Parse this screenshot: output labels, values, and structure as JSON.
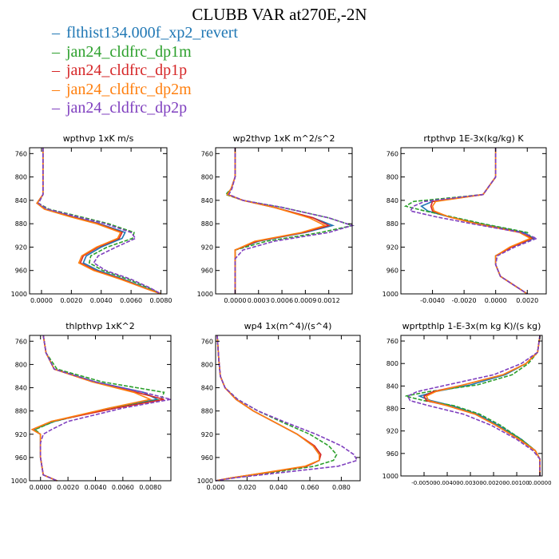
{
  "title": "CLUBB VAR at270E,-2N",
  "legend": [
    {
      "label": "flthist134.000f_xp2_revert",
      "color": "#1f77b4"
    },
    {
      "label": "jan24_cldfrc_dp1m",
      "color": "#2ca02c"
    },
    {
      "label": "jan24_cldfrc_dp1p",
      "color": "#d62728"
    },
    {
      "label": "jan24_cldfrc_dp2m",
      "color": "#ff7f0e"
    },
    {
      "label": "jan24_cldfrc_dp2p",
      "color": "#7f3fbf"
    }
  ],
  "chart_data": [
    {
      "type": "line",
      "title": "wpthvp  1xK m/s",
      "xlim": [
        -0.0008,
        0.0084
      ],
      "ylim": [
        1000,
        750
      ],
      "xticks": [
        "0.0000",
        "0.0020",
        "0.0040",
        "0.0060",
        "0.0080"
      ],
      "xtick_values": [
        0,
        0.002,
        0.004,
        0.006,
        0.008
      ],
      "yticks": [
        760,
        800,
        840,
        880,
        920,
        960,
        1000
      ],
      "y": [
        750,
        800,
        830,
        845,
        855,
        868,
        880,
        895,
        905,
        920,
        935,
        947,
        960,
        975,
        990,
        1000
      ],
      "series": [
        {
          "color": "#1f77b4",
          "dash": false,
          "values": [
            0.0001,
            0.0001,
            0.0001,
            -0.0003,
            0.0003,
            0.0021,
            0.0039,
            0.0056,
            0.0054,
            0.004,
            0.003,
            0.0028,
            0.0038,
            0.0055,
            0.007,
            0.008
          ]
        },
        {
          "color": "#2ca02c",
          "dash": true,
          "values": [
            0.0001,
            0.0001,
            0.0001,
            -0.0002,
            0.0005,
            0.0026,
            0.0045,
            0.0062,
            0.0061,
            0.0044,
            0.0033,
            0.0032,
            0.0041,
            0.0058,
            0.0072,
            0.008
          ]
        },
        {
          "color": "#d62728",
          "dash": false,
          "values": [
            0.0001,
            0.0001,
            0.0001,
            -0.0003,
            0.0002,
            0.002,
            0.0038,
            0.0054,
            0.0052,
            0.0038,
            0.0028,
            0.0026,
            0.0036,
            0.0054,
            0.0069,
            0.008
          ]
        },
        {
          "color": "#ff7f0e",
          "dash": false,
          "values": [
            0.0001,
            0.0001,
            0.0001,
            -0.0003,
            0.0002,
            0.0019,
            0.0037,
            0.0053,
            0.0051,
            0.0037,
            0.0027,
            0.0025,
            0.0035,
            0.0053,
            0.0069,
            0.008
          ]
        },
        {
          "color": "#7f3fbf",
          "dash": true,
          "values": [
            0.0001,
            0.0001,
            0.0001,
            -0.0002,
            0.0004,
            0.0024,
            0.0043,
            0.006,
            0.0063,
            0.005,
            0.0038,
            0.0035,
            0.0043,
            0.006,
            0.0073,
            0.008
          ]
        }
      ]
    },
    {
      "type": "line",
      "title": "wp2thvp  1xK m^2/s^2",
      "xlim": [
        -0.00025,
        0.0015
      ],
      "ylim": [
        1000,
        750
      ],
      "xticks": [
        "0.0000",
        "0.0003",
        "0.0006",
        "0.0009",
        "0.0012"
      ],
      "xtick_values": [
        0,
        0.0003,
        0.0006,
        0.0009,
        0.0012
      ],
      "yticks": [
        760,
        800,
        840,
        880,
        920,
        960,
        1000
      ],
      "y": [
        750,
        800,
        820,
        830,
        840,
        852,
        870,
        883,
        895,
        910,
        925,
        940,
        970,
        1000
      ],
      "series": [
        {
          "color": "#1f77b4",
          "dash": false,
          "values": [
            0.0,
            0.0,
            -5e-05,
            -0.0001,
            0.0001,
            0.0005,
            0.001,
            0.00125,
            0.0009,
            0.0003,
            0.0,
            0.0,
            0.0,
            0.0
          ]
        },
        {
          "color": "#2ca02c",
          "dash": true,
          "values": [
            0.0,
            0.0,
            -5e-05,
            -0.00012,
            0.0001,
            0.0006,
            0.0012,
            0.0015,
            0.0011,
            0.0004,
            0.0,
            0.0,
            0.0,
            0.0
          ]
        },
        {
          "color": "#d62728",
          "dash": false,
          "values": [
            0.0,
            0.0,
            -5e-05,
            -0.0001,
            0.0001,
            0.0005,
            0.001,
            0.0012,
            0.00088,
            0.00028,
            0.0,
            0.0,
            0.0,
            0.0
          ]
        },
        {
          "color": "#ff7f0e",
          "dash": false,
          "values": [
            0.0,
            0.0,
            -5e-05,
            -0.0001,
            0.0001,
            0.0005,
            0.00095,
            0.00115,
            0.00085,
            0.00025,
            0.0,
            0.0,
            0.0,
            0.0
          ]
        },
        {
          "color": "#7f3fbf",
          "dash": true,
          "values": [
            0.0,
            0.0,
            -4e-05,
            -8e-05,
            0.0001,
            0.0006,
            0.0012,
            0.0015,
            0.0012,
            0.0005,
            0.0001,
            0.0,
            0.0,
            0.0
          ]
        }
      ]
    },
    {
      "type": "line",
      "title": "rtpthvp  1E-3x(kg/kg) K",
      "xlim": [
        -0.006,
        0.0032
      ],
      "ylim": [
        1000,
        750
      ],
      "xticks": [
        "-0.0040",
        "-0.0020",
        "0.0000",
        "0.0020"
      ],
      "xtick_values": [
        -0.004,
        -0.002,
        0,
        0.002
      ],
      "yticks": [
        760,
        800,
        840,
        880,
        920,
        960,
        1000
      ],
      "y": [
        750,
        800,
        830,
        842,
        850,
        858,
        868,
        880,
        895,
        905,
        920,
        935,
        950,
        970,
        1000
      ],
      "series": [
        {
          "color": "#1f77b4",
          "dash": false,
          "values": [
            0.0,
            0.0,
            -0.0008,
            -0.004,
            -0.0047,
            -0.0043,
            -0.003,
            -0.001,
            0.0018,
            0.0024,
            0.001,
            0.0,
            0.0,
            0.0003,
            0.002
          ]
        },
        {
          "color": "#2ca02c",
          "dash": true,
          "values": [
            0.0,
            0.0,
            -0.0008,
            -0.0052,
            -0.0057,
            -0.0045,
            -0.0028,
            -0.0008,
            0.002,
            0.0023,
            0.001,
            0.0,
            0.0,
            0.0003,
            0.002
          ]
        },
        {
          "color": "#d62728",
          "dash": false,
          "values": [
            0.0,
            0.0,
            -0.0008,
            -0.004,
            -0.0041,
            -0.004,
            -0.003,
            -0.0012,
            0.0016,
            0.0023,
            0.001,
            0.0,
            0.0,
            0.0003,
            0.002
          ]
        },
        {
          "color": "#ff7f0e",
          "dash": false,
          "values": [
            0.0,
            0.0,
            -0.0008,
            -0.0038,
            -0.004,
            -0.0039,
            -0.003,
            -0.0012,
            0.0015,
            0.0022,
            0.0009,
            0.0,
            0.0,
            0.0003,
            0.002
          ]
        },
        {
          "color": "#7f3fbf",
          "dash": true,
          "values": [
            0.0,
            0.0,
            -0.0008,
            -0.0045,
            -0.0052,
            -0.0054,
            -0.0038,
            -0.0015,
            0.0016,
            0.0026,
            0.0012,
            0.0001,
            0.0,
            0.0003,
            0.002
          ]
        }
      ]
    },
    {
      "type": "line",
      "title": "thlpthvp  1xK^2",
      "xlim": [
        -0.0008,
        0.0095
      ],
      "ylim": [
        1000,
        750
      ],
      "xticks": [
        "0.0000",
        "0.0020",
        "0.0040",
        "0.0060",
        "0.0080"
      ],
      "xtick_values": [
        0,
        0.002,
        0.004,
        0.006,
        0.008
      ],
      "yticks": [
        760,
        800,
        840,
        880,
        920,
        960,
        1000
      ],
      "y": [
        750,
        780,
        808,
        830,
        848,
        860,
        875,
        898,
        912,
        920,
        935,
        960,
        990,
        1000
      ],
      "series": [
        {
          "color": "#1f77b4",
          "dash": false,
          "values": [
            0.0002,
            0.0004,
            0.001,
            0.004,
            0.0075,
            0.0085,
            0.005,
            0.001,
            -0.0005,
            0.0,
            0.0,
            0.0,
            0.0002,
            0.0012
          ]
        },
        {
          "color": "#2ca02c",
          "dash": true,
          "values": [
            0.0002,
            0.0004,
            0.0012,
            0.0045,
            0.009,
            0.0088,
            0.0052,
            0.001,
            -0.0004,
            0.0,
            0.0,
            0.0,
            0.0002,
            0.0012
          ]
        },
        {
          "color": "#d62728",
          "dash": false,
          "values": [
            0.0002,
            0.0004,
            0.001,
            0.0038,
            0.007,
            0.009,
            0.0055,
            0.0008,
            -0.0006,
            0.0,
            0.0,
            0.0,
            0.0002,
            0.0012
          ]
        },
        {
          "color": "#ff7f0e",
          "dash": false,
          "values": [
            0.0002,
            0.0004,
            0.001,
            0.0038,
            0.0068,
            0.008,
            0.005,
            0.0008,
            -0.0006,
            0.0,
            0.0,
            0.0,
            0.0002,
            0.0012
          ]
        },
        {
          "color": "#7f3fbf",
          "dash": true,
          "values": [
            0.0002,
            0.0004,
            0.001,
            0.004,
            0.0075,
            0.0095,
            0.006,
            0.002,
            0.0008,
            0.0002,
            0.0,
            0.0,
            0.0002,
            0.0012
          ]
        }
      ]
    },
    {
      "type": "line",
      "title": "wp4  1x(m^4)/(s^4)",
      "xlim": [
        0,
        0.092
      ],
      "ylim": [
        1000,
        750
      ],
      "xticks": [
        "0.000",
        "0.020",
        "0.040",
        "0.060",
        "0.080"
      ],
      "xtick_values": [
        0,
        0.02,
        0.04,
        0.06,
        0.08
      ],
      "yticks": [
        760,
        800,
        840,
        880,
        920,
        960,
        1000
      ],
      "y": [
        750,
        790,
        820,
        840,
        860,
        880,
        900,
        920,
        940,
        955,
        965,
        975,
        985,
        995,
        1000
      ],
      "series": [
        {
          "color": "#1f77b4",
          "dash": false,
          "values": [
            0.001,
            0.002,
            0.003,
            0.006,
            0.013,
            0.024,
            0.038,
            0.052,
            0.062,
            0.066,
            0.066,
            0.058,
            0.035,
            0.01,
            0.0
          ]
        },
        {
          "color": "#2ca02c",
          "dash": true,
          "values": [
            0.001,
            0.002,
            0.003,
            0.006,
            0.014,
            0.027,
            0.043,
            0.06,
            0.072,
            0.077,
            0.075,
            0.063,
            0.038,
            0.011,
            0.0
          ]
        },
        {
          "color": "#d62728",
          "dash": false,
          "values": [
            0.001,
            0.002,
            0.003,
            0.006,
            0.013,
            0.024,
            0.038,
            0.052,
            0.063,
            0.067,
            0.066,
            0.058,
            0.035,
            0.01,
            0.0
          ]
        },
        {
          "color": "#ff7f0e",
          "dash": false,
          "values": [
            0.001,
            0.002,
            0.003,
            0.006,
            0.013,
            0.024,
            0.038,
            0.052,
            0.062,
            0.066,
            0.066,
            0.057,
            0.034,
            0.01,
            0.0
          ]
        },
        {
          "color": "#7f3fbf",
          "dash": true,
          "values": [
            0.001,
            0.002,
            0.003,
            0.006,
            0.014,
            0.027,
            0.045,
            0.064,
            0.08,
            0.088,
            0.09,
            0.078,
            0.045,
            0.012,
            0.0
          ]
        }
      ]
    },
    {
      "type": "line",
      "title": "wprtpthlp  1-E-3x(m kg K)/(s kg)",
      "xlim": [
        -0.006,
        0.0001
      ],
      "ylim": [
        1000,
        750
      ],
      "xticks": [
        "-0.00500",
        "-0.00400",
        "-0.00300",
        "-0.00200",
        "-0.00100",
        "0.00000"
      ],
      "xtick_values": [
        -0.005,
        -0.004,
        -0.003,
        -0.002,
        -0.001,
        0
      ],
      "yticks": [
        760,
        800,
        840,
        880,
        920,
        960,
        1000
      ],
      "y": [
        750,
        780,
        800,
        820,
        838,
        850,
        858,
        866,
        875,
        890,
        910,
        935,
        955,
        970,
        990,
        1000
      ],
      "series": [
        {
          "color": "#1f77b4",
          "dash": false,
          "values": [
            0.0,
            -0.0001,
            -0.0006,
            -0.0015,
            -0.003,
            -0.0045,
            -0.0052,
            -0.0047,
            -0.0038,
            -0.0027,
            -0.0018,
            -0.0008,
            -0.0002,
            0.0,
            0.0,
            0.0
          ]
        },
        {
          "color": "#2ca02c",
          "dash": true,
          "values": [
            0.0,
            -0.0001,
            -0.0005,
            -0.0012,
            -0.0027,
            -0.0048,
            -0.0058,
            -0.005,
            -0.0037,
            -0.0026,
            -0.0017,
            -0.0008,
            -0.0002,
            0.0,
            0.0,
            0.0
          ]
        },
        {
          "color": "#d62728",
          "dash": false,
          "values": [
            0.0,
            -0.0001,
            -0.0006,
            -0.0016,
            -0.0033,
            -0.0046,
            -0.005,
            -0.0049,
            -0.004,
            -0.0028,
            -0.0019,
            -0.0009,
            -0.0002,
            0.0,
            0.0,
            0.0
          ]
        },
        {
          "color": "#ff7f0e",
          "dash": false,
          "values": [
            0.0,
            -0.0001,
            -0.0006,
            -0.0016,
            -0.0033,
            -0.0045,
            -0.0049,
            -0.0048,
            -0.004,
            -0.0028,
            -0.0019,
            -0.0009,
            -0.0002,
            0.0,
            0.0,
            0.0
          ]
        },
        {
          "color": "#7f3fbf",
          "dash": true,
          "values": [
            0.0,
            -0.0001,
            -0.0008,
            -0.002,
            -0.004,
            -0.0053,
            -0.0057,
            -0.0056,
            -0.0048,
            -0.0033,
            -0.0021,
            -0.001,
            -0.0003,
            0.0,
            0.0,
            0.0
          ]
        }
      ]
    }
  ]
}
